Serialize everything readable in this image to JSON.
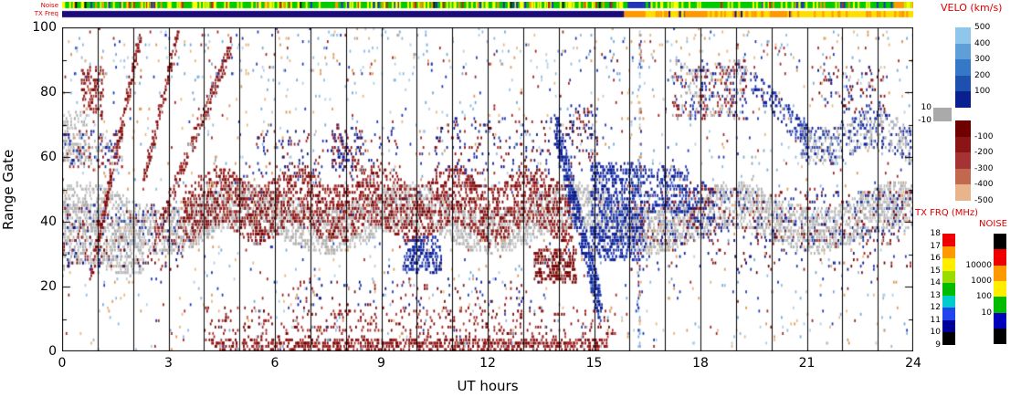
{
  "colors": {
    "legend_title": "#dd0000",
    "background": "#ffffff",
    "axis": "#000000"
  },
  "legend": {
    "velo_title": "VELO (km/s)",
    "velo_pos_labels": [
      "500",
      "400",
      "300",
      "200",
      "100",
      "10"
    ],
    "velo_neg_labels": [
      "-10",
      "-100",
      "-200",
      "-300",
      "-400",
      "-500"
    ],
    "velo_pos_colors": [
      "#8fc6ec",
      "#5f9fd8",
      "#3678c8",
      "#1e50b0",
      "#0a2090"
    ],
    "velo_neg_colors": [
      "#6f0000",
      "#8b1515",
      "#a53333",
      "#c2684e",
      "#e8b48c"
    ],
    "ground_scatter_color": "#aaaaaa",
    "txfrq_title": "TX FRQ (MHz)",
    "txfrq_labels": [
      "18",
      "17",
      "16",
      "15",
      "14",
      "13",
      "12",
      "11",
      "10",
      "9"
    ],
    "txfrq_colors": [
      "#ee0000",
      "#ff9900",
      "#ffee00",
      "#99dd00",
      "#00bb00",
      "#00cccc",
      "#2244ee",
      "#000099",
      "#000000"
    ],
    "noise_title": "NOISE",
    "noise_labels": [
      "10000",
      "1000",
      "100",
      "10"
    ],
    "noise_colors": [
      "#000000",
      "#ee0000",
      "#ff9900",
      "#ffee00",
      "#00bb00",
      "#0000bb",
      "#000000"
    ]
  },
  "chart_data": {
    "type": "heatmap",
    "xlabel": "UT hours",
    "ylabel": "Range Gate",
    "x_range": [
      0,
      24
    ],
    "y_range": [
      0,
      100
    ],
    "x_ticks": [
      0,
      3,
      6,
      9,
      12,
      15,
      18,
      21,
      24
    ],
    "y_ticks": [
      0,
      20,
      40,
      60,
      80,
      100
    ],
    "x_minor_step": 1,
    "y_minor_step": 10,
    "hour_gridline_step": 1,
    "seed": 20230707,
    "palettes": {
      "gray": [
        "#b9b9b9",
        "#ababab",
        "#c5c5c5"
      ],
      "red": [
        "#8c1010",
        "#7c0808",
        "#a02525",
        "#942020",
        "#6f0505",
        "#ad3535"
      ],
      "darkred": [
        "#6f0000",
        "#800f0f",
        "#8c1616"
      ],
      "blue": [
        "#0c1f96",
        "#15289f",
        "#1f39b0",
        "#0a1680",
        "#2a49c0"
      ],
      "mixedRB": [
        "#8c1010",
        "#a02525",
        "#6f0505",
        "#0c1f96",
        "#1f39b0",
        "#0a1680"
      ],
      "mixedAll": [
        "#8c1010",
        "#a02525",
        "#0c1f96",
        "#1f39b0",
        "#b9b9b9",
        "#ababab"
      ],
      "mixedGB": [
        "#b9b9b9",
        "#c5c5c5",
        "#ababab",
        "#0c1f96",
        "#1f39b0"
      ],
      "speck": [
        "#d99a5b",
        "#e8b780",
        "#8fb8e0",
        "#b0cfe8",
        "#a02525",
        "#1f39b0",
        "#74a8d8"
      ]
    },
    "features": [
      {
        "kind": "band",
        "x0": 0,
        "x1": 24,
        "yc": 41,
        "th": 7,
        "wave": [
          4,
          4.6,
          0.8
        ],
        "d": 0.5,
        "p": "gray"
      },
      {
        "kind": "band",
        "x0": 0,
        "x1": 2.3,
        "yc": 31,
        "th": 6,
        "wave": [
          2,
          2.5,
          0
        ],
        "d": 0.45,
        "p": "gray"
      },
      {
        "kind": "patch",
        "x0": 0,
        "x1": 0.7,
        "y0": 58,
        "y1": 74,
        "d": 0.4,
        "p": "gray"
      },
      {
        "kind": "patch",
        "x0": 0,
        "x1": 1.7,
        "y0": 57,
        "y1": 68,
        "d": 0.22,
        "p": "mixedAll"
      },
      {
        "kind": "patch",
        "x0": 0,
        "x1": 3.4,
        "y0": 25,
        "y1": 45,
        "d": 0.1,
        "p": "mixedRB"
      },
      {
        "kind": "streak",
        "x0": 0.8,
        "y0": 22,
        "x1": 2.2,
        "y1": 98,
        "th": 2.5,
        "d": 0.5,
        "p": "red"
      },
      {
        "kind": "streak",
        "x0": 2.3,
        "y0": 52,
        "x1": 3.3,
        "y1": 100,
        "th": 2.5,
        "d": 0.45,
        "p": "red"
      },
      {
        "kind": "streak",
        "x0": 2.6,
        "y0": 34,
        "x1": 4.8,
        "y1": 96,
        "th": 3,
        "d": 0.45,
        "p": "red"
      },
      {
        "kind": "patch",
        "x0": 0.55,
        "x1": 1.15,
        "y0": 72,
        "y1": 88,
        "d": 0.35,
        "p": "red"
      },
      {
        "kind": "band",
        "x0": 3.4,
        "x1": 14.4,
        "yc": 45,
        "th": 9,
        "wave": [
          3,
          2.2,
          1.5
        ],
        "d": 0.4,
        "p": "red"
      },
      {
        "kind": "patch",
        "x0": 4.2,
        "x1": 15.4,
        "y0": 0,
        "y1": 3,
        "d": 0.55,
        "p": "red"
      },
      {
        "kind": "patch",
        "x0": 4.0,
        "x1": 15.6,
        "y0": 3,
        "y1": 13,
        "d": 0.1,
        "p": "red"
      },
      {
        "kind": "patch",
        "x0": 6.5,
        "x1": 13.5,
        "y0": 13,
        "y1": 22,
        "d": 0.05,
        "p": "mixedRB"
      },
      {
        "kind": "patch",
        "x0": 13.3,
        "x1": 14.5,
        "y0": 21,
        "y1": 32,
        "d": 0.55,
        "p": "darkred"
      },
      {
        "kind": "patch",
        "x0": 9.6,
        "x1": 10.7,
        "y0": 24,
        "y1": 35,
        "d": 0.5,
        "p": "blue"
      },
      {
        "kind": "patch",
        "x0": 7.6,
        "x1": 8.5,
        "y0": 56,
        "y1": 70,
        "d": 0.28,
        "p": "mixedRB"
      },
      {
        "kind": "patch",
        "x0": 5.5,
        "x1": 9.5,
        "y0": 54,
        "y1": 68,
        "d": 0.07,
        "p": "mixedRB"
      },
      {
        "kind": "patch",
        "x0": 10.5,
        "x1": 13.8,
        "y0": 54,
        "y1": 72,
        "d": 0.09,
        "p": "mixedRB"
      },
      {
        "kind": "streak",
        "x0": 13.9,
        "y0": 70,
        "x1": 15.2,
        "y1": 12,
        "th": 6,
        "d": 0.6,
        "p": "blue"
      },
      {
        "kind": "patch",
        "x0": 14.9,
        "x1": 16.4,
        "y0": 28,
        "y1": 58,
        "d": 0.5,
        "p": "blue"
      },
      {
        "kind": "patch",
        "x0": 16.4,
        "x1": 17.7,
        "y0": 42,
        "y1": 57,
        "d": 0.35,
        "p": "blue"
      },
      {
        "kind": "patch",
        "x0": 17.7,
        "x1": 18.4,
        "y0": 38,
        "y1": 52,
        "d": 0.28,
        "p": "mixedRB"
      },
      {
        "kind": "patch",
        "x0": 17.2,
        "x1": 19.3,
        "y0": 72,
        "y1": 90,
        "d": 0.28,
        "p": "mixedAll"
      },
      {
        "kind": "streak",
        "x0": 19.4,
        "y0": 84,
        "x1": 21.2,
        "y1": 64,
        "th": 4,
        "d": 0.3,
        "p": "blue"
      },
      {
        "kind": "band",
        "x0": 20.8,
        "x1": 24,
        "yc": 66,
        "th": 6,
        "wave": [
          3,
          2.8,
          0.5
        ],
        "d": 0.38,
        "p": "mixedGB"
      },
      {
        "kind": "patch",
        "x0": 14.2,
        "x1": 15.1,
        "y0": 58,
        "y1": 76,
        "d": 0.16,
        "p": "mixedRB"
      },
      {
        "kind": "streak",
        "x0": 16.25,
        "y0": 0,
        "x1": 16.3,
        "y1": 100,
        "th": 1.2,
        "d": 0.3,
        "p": "speck"
      },
      {
        "kind": "patch",
        "x0": 21.3,
        "x1": 23.2,
        "y0": 74,
        "y1": 88,
        "d": 0.1,
        "p": "mixedRB"
      },
      {
        "kind": "patch",
        "x0": 16.0,
        "x1": 24,
        "y0": 24,
        "y1": 37,
        "d": 0.035,
        "p": "mixedRB"
      },
      {
        "kind": "patch",
        "x0": 16.0,
        "x1": 24,
        "y0": 33,
        "y1": 50,
        "d": 0.1,
        "p": "mixedRB"
      },
      {
        "kind": "patch",
        "x0": 0,
        "x1": 24,
        "y0": 84,
        "y1": 100,
        "d": 0.02,
        "p": "speck"
      },
      {
        "kind": "random",
        "n": 1500,
        "p": "speck"
      }
    ],
    "strips": {
      "noise": {
        "label": "Noise",
        "base": "#00cc00",
        "specks": [
          [
            "#ffff00",
            0.2
          ],
          [
            "#ff9900",
            0.05
          ],
          [
            "#cc2200",
            0.04
          ],
          [
            "#2233bb",
            0.04
          ],
          [
            "#111111",
            0.01
          ]
        ],
        "segments": [
          [
            15.95,
            16.4,
            "#2233bb"
          ],
          [
            23.45,
            23.75,
            "#ff9900"
          ]
        ]
      },
      "txfreq": {
        "label": "TX Freq",
        "base": "#ffdf00",
        "specks": [
          [
            "#ff9900",
            0.22
          ],
          [
            "#1d0b78",
            0.02
          ]
        ],
        "speck_range": [
          16.45,
          24
        ],
        "segments": [
          [
            0,
            15.85,
            "#1d0b78"
          ],
          [
            15.85,
            16.45,
            "#ff9900"
          ],
          [
            17.55,
            18.2,
            "#ff9900"
          ],
          [
            19.95,
            20.45,
            "#ff9900"
          ]
        ]
      }
    }
  }
}
